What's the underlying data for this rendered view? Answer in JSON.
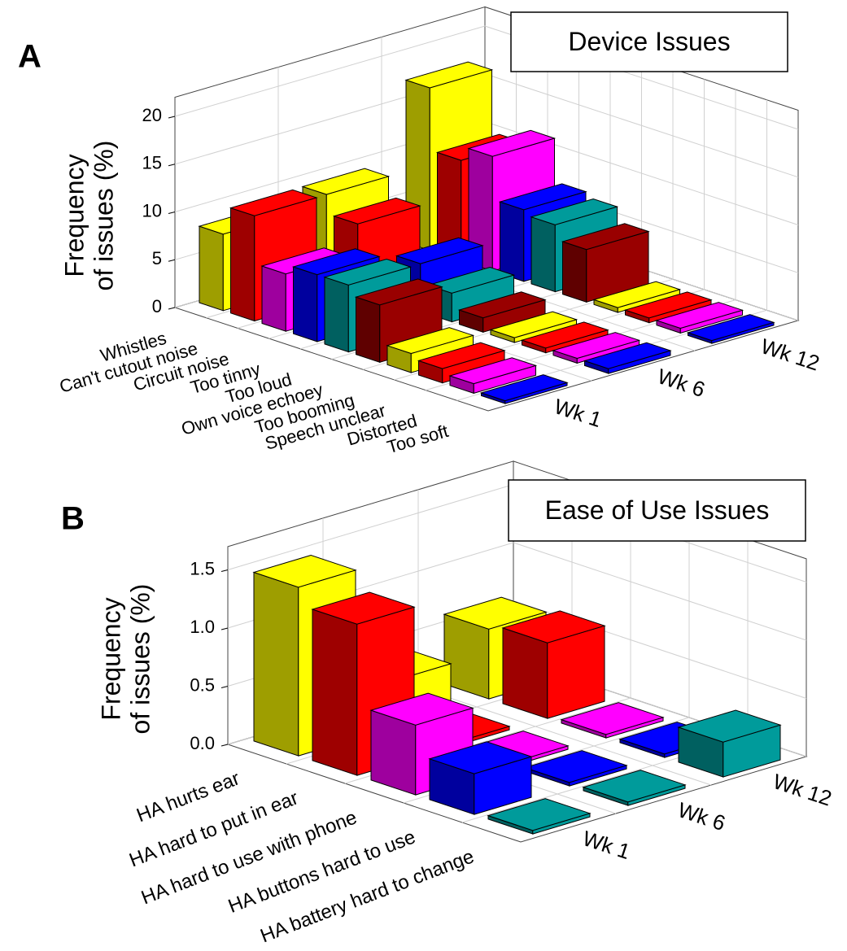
{
  "chart_data": [
    {
      "type": "bar3d",
      "panel_label": "A",
      "title": "Device Issues",
      "zlabel": [
        "Frequency",
        "of issues (%)"
      ],
      "categories": [
        "Whistles",
        "Can't cutout noise",
        "Circuit noise",
        "Too tinny",
        "Too loud",
        "Own voice echoey",
        "Too booming",
        "Speech unclear",
        "Distorted",
        "Too soft"
      ],
      "colors": [
        "#ffff00",
        "#ff0000",
        "#ff00ff",
        "#0000ff",
        "#009b9b",
        "#990000",
        "#ffff00",
        "#ff0000",
        "#ff00ff",
        "#0000ff"
      ],
      "series": [
        {
          "name": "Wk 1",
          "values": [
            8,
            11,
            6,
            7,
            7,
            6,
            2,
            1.5,
            1,
            0.3
          ]
        },
        {
          "name": "Wk 6",
          "values": [
            9,
            7,
            0,
            5,
            3,
            1.5,
            0.5,
            0.5,
            0.5,
            0.5
          ]
        },
        {
          "name": "Wk 12",
          "values": [
            17,
            10.5,
            12,
            7.5,
            7,
            5.5,
            0.5,
            0.5,
            0.5,
            0.3
          ]
        }
      ],
      "zlim": [
        0,
        22
      ],
      "zticks": [
        0,
        5,
        10,
        15,
        20
      ],
      "grid": true
    },
    {
      "type": "bar3d",
      "panel_label": "B",
      "title": "Ease of Use Issues",
      "zlabel": [
        "Frequency",
        "of issues (%)"
      ],
      "categories": [
        "HA hurts ear",
        "HA hard to put in ear",
        "HA hard to use with phone",
        "HA buttons hard to use",
        "HA battery hard to change"
      ],
      "colors": [
        "#ffff00",
        "#ff0000",
        "#ff00ff",
        "#0000ff",
        "#009b9b"
      ],
      "series": [
        {
          "name": "Wk 1",
          "values": [
            1.45,
            1.3,
            0.6,
            0.35,
            0.03
          ]
        },
        {
          "name": "Wk 6",
          "values": [
            0.4,
            0.03,
            0.03,
            0.03,
            0.03
          ]
        },
        {
          "name": "Wk 12",
          "values": [
            0.6,
            0.65,
            0.03,
            0.03,
            0.3
          ]
        }
      ],
      "zlim": [
        0,
        1.7
      ],
      "zticks": [
        {
          "value": 0,
          "label": "0.0"
        },
        0.5,
        {
          "value": 1,
          "label": "1.0"
        },
        {
          "value": 1.5,
          "label": "1.5"
        }
      ],
      "grid": true
    }
  ]
}
